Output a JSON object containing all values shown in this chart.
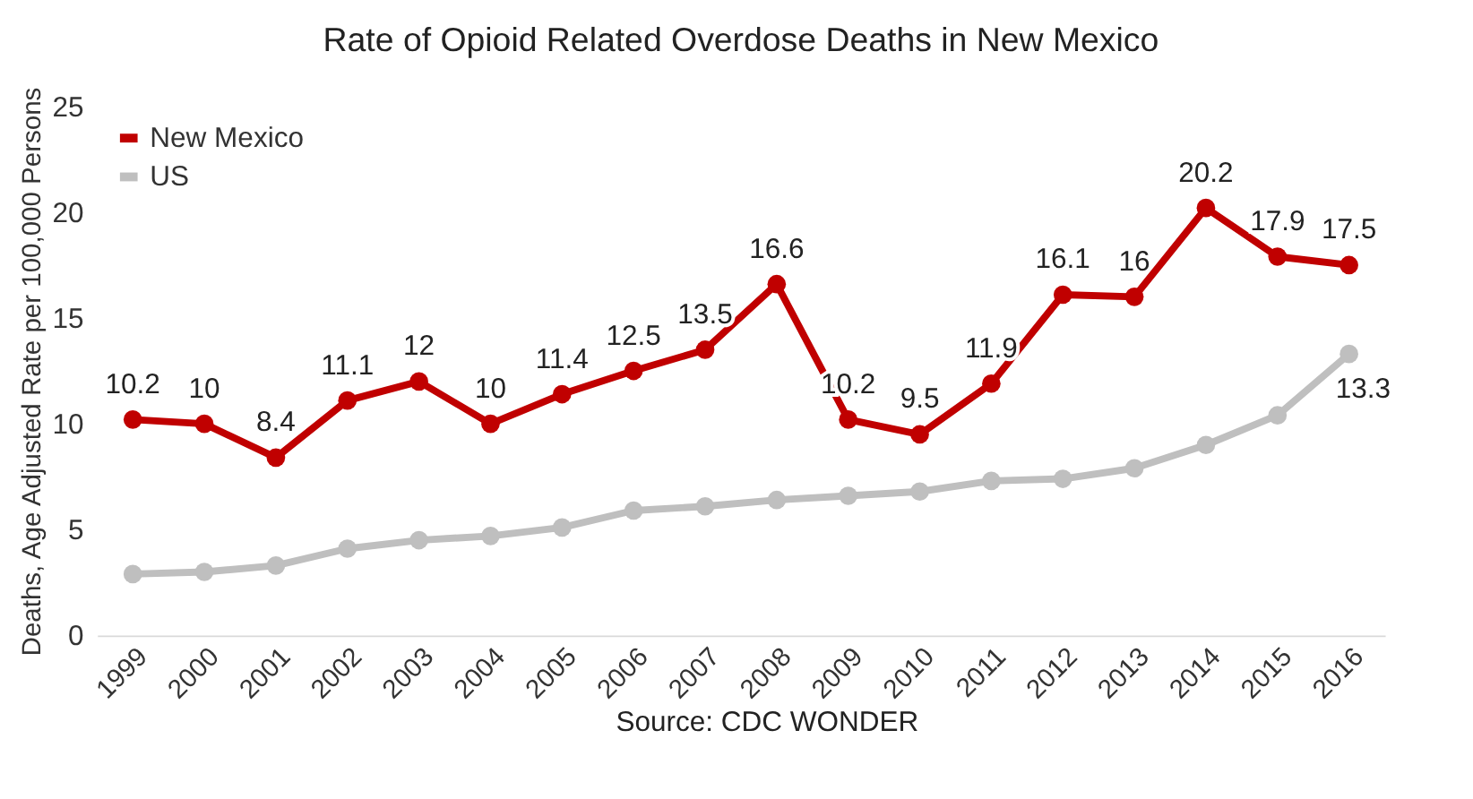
{
  "chart_data": {
    "type": "line",
    "title": "Rate of Opioid Related Overdose Deaths in New Mexico",
    "ylabel": "Deaths, Age Adjusted Rate per 100,000 Persons",
    "annotations": [
      "Source: CDC WONDER"
    ],
    "categories": [
      "1999",
      "2000",
      "2001",
      "2002",
      "2003",
      "2004",
      "2005",
      "2006",
      "2007",
      "2008",
      "2009",
      "2010",
      "2011",
      "2012",
      "2013",
      "2014",
      "2015",
      "2016"
    ],
    "series": [
      {
        "name": "New Mexico",
        "color": "#c00000",
        "values": [
          10.2,
          10,
          8.4,
          11.1,
          12,
          10,
          11.4,
          12.5,
          13.5,
          16.6,
          10.2,
          9.5,
          11.9,
          16.1,
          16,
          20.2,
          17.9,
          17.5
        ],
        "value_labels": [
          "10.2",
          "10",
          "8.4",
          "11.1",
          "12",
          "10",
          "11.4",
          "12.5",
          "13.5",
          "16.6",
          "10.2",
          "9.5",
          "11.9",
          "16.1",
          "16",
          "20.2",
          "17.9",
          "17.5"
        ]
      },
      {
        "name": "US",
        "color": "#bfbfbf",
        "values": [
          2.9,
          3.0,
          3.3,
          4.1,
          4.5,
          4.7,
          5.1,
          5.9,
          6.1,
          6.4,
          6.6,
          6.8,
          7.3,
          7.4,
          7.9,
          9.0,
          10.4,
          13.3
        ],
        "value_labels": [
          null,
          null,
          null,
          null,
          null,
          null,
          null,
          null,
          null,
          null,
          null,
          null,
          null,
          null,
          null,
          null,
          null,
          "13.3"
        ]
      }
    ],
    "ylim": [
      0,
      25
    ],
    "yticks": [
      0,
      5,
      10,
      15,
      20,
      25
    ],
    "grid": false,
    "legend": "top left",
    "marker": "circle",
    "line_style": "solid"
  }
}
